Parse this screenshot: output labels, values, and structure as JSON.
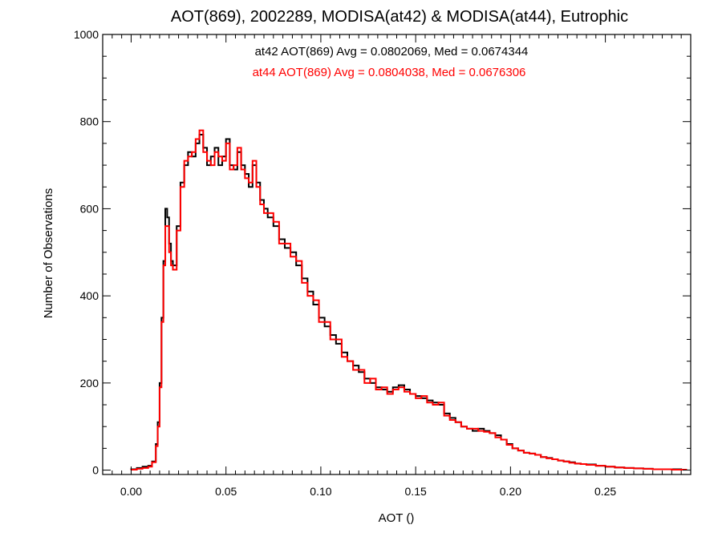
{
  "chart_data": {
    "type": "line",
    "style": "histogram-step",
    "title": "AOT(869), 2002289, MODISA(at42) & MODISA(at44), Eutrophic",
    "xlabel": "AOT ()",
    "ylabel": "Number of Observations",
    "xlim": [
      -0.015,
      0.295
    ],
    "ylim": [
      -10,
      1000
    ],
    "xticks": [
      0.0,
      0.05,
      0.1,
      0.15,
      0.2,
      0.25
    ],
    "xtick_labels": [
      "0.00",
      "0.05",
      "0.10",
      "0.15",
      "0.20",
      "0.25"
    ],
    "yticks": [
      0,
      200,
      400,
      600,
      800,
      1000
    ],
    "ytick_labels": [
      "0",
      "200",
      "400",
      "600",
      "800",
      "1000"
    ],
    "grid": false,
    "annotations": [
      {
        "text": "at42 AOT(869) Avg = 0.0802069, Med = 0.0674344",
        "color": "#000000"
      },
      {
        "text": "at44 AOT(869) Avg = 0.0804038, Med = 0.0676306",
        "color": "#ff0000"
      }
    ],
    "series": [
      {
        "color": "#000000",
        "x": [
          0.0,
          0.003,
          0.006,
          0.009,
          0.011,
          0.013,
          0.014,
          0.015,
          0.016,
          0.017,
          0.018,
          0.019,
          0.02,
          0.021,
          0.022,
          0.024,
          0.026,
          0.028,
          0.03,
          0.032,
          0.034,
          0.036,
          0.038,
          0.04,
          0.042,
          0.044,
          0.046,
          0.048,
          0.05,
          0.052,
          0.054,
          0.056,
          0.058,
          0.06,
          0.062,
          0.064,
          0.066,
          0.068,
          0.07,
          0.072,
          0.075,
          0.078,
          0.081,
          0.084,
          0.087,
          0.09,
          0.093,
          0.096,
          0.099,
          0.102,
          0.105,
          0.108,
          0.111,
          0.114,
          0.117,
          0.12,
          0.123,
          0.126,
          0.129,
          0.132,
          0.135,
          0.138,
          0.141,
          0.144,
          0.147,
          0.15,
          0.153,
          0.156,
          0.159,
          0.162,
          0.165,
          0.168,
          0.171,
          0.174,
          0.177,
          0.18,
          0.183,
          0.186,
          0.189,
          0.192,
          0.195,
          0.198,
          0.201,
          0.204,
          0.207,
          0.21,
          0.213,
          0.216,
          0.219,
          0.222,
          0.225,
          0.228,
          0.231,
          0.234,
          0.237,
          0.24,
          0.245,
          0.25,
          0.255,
          0.26,
          0.265,
          0.27,
          0.275,
          0.28,
          0.285,
          0.29
        ],
        "y": [
          2,
          5,
          8,
          10,
          20,
          60,
          110,
          200,
          350,
          480,
          600,
          580,
          520,
          480,
          470,
          560,
          660,
          700,
          730,
          720,
          750,
          770,
          740,
          700,
          720,
          740,
          700,
          720,
          760,
          700,
          690,
          730,
          700,
          680,
          650,
          700,
          660,
          620,
          600,
          580,
          560,
          530,
          510,
          500,
          470,
          440,
          410,
          380,
          350,
          330,
          310,
          290,
          270,
          250,
          240,
          225,
          210,
          200,
          190,
          185,
          180,
          190,
          195,
          185,
          175,
          170,
          165,
          160,
          155,
          150,
          130,
          120,
          110,
          100,
          95,
          90,
          95,
          90,
          85,
          80,
          70,
          60,
          50,
          45,
          40,
          38,
          35,
          30,
          28,
          25,
          22,
          20,
          18,
          15,
          14,
          13,
          10,
          8,
          6,
          5,
          4,
          3,
          2,
          2,
          2,
          1
        ]
      },
      {
        "color": "#ff0000",
        "x": [
          0.0,
          0.003,
          0.006,
          0.009,
          0.011,
          0.013,
          0.014,
          0.015,
          0.016,
          0.017,
          0.018,
          0.019,
          0.02,
          0.021,
          0.022,
          0.024,
          0.026,
          0.028,
          0.03,
          0.032,
          0.034,
          0.036,
          0.038,
          0.04,
          0.042,
          0.044,
          0.046,
          0.048,
          0.05,
          0.052,
          0.054,
          0.056,
          0.058,
          0.06,
          0.062,
          0.064,
          0.066,
          0.068,
          0.07,
          0.072,
          0.075,
          0.078,
          0.081,
          0.084,
          0.087,
          0.09,
          0.093,
          0.096,
          0.099,
          0.102,
          0.105,
          0.108,
          0.111,
          0.114,
          0.117,
          0.12,
          0.123,
          0.126,
          0.129,
          0.132,
          0.135,
          0.138,
          0.141,
          0.144,
          0.147,
          0.15,
          0.153,
          0.156,
          0.159,
          0.162,
          0.165,
          0.168,
          0.171,
          0.174,
          0.177,
          0.18,
          0.183,
          0.186,
          0.189,
          0.192,
          0.195,
          0.198,
          0.201,
          0.204,
          0.207,
          0.21,
          0.213,
          0.216,
          0.219,
          0.222,
          0.225,
          0.228,
          0.231,
          0.234,
          0.237,
          0.24,
          0.245,
          0.25,
          0.255,
          0.26,
          0.265,
          0.27,
          0.275,
          0.28,
          0.285,
          0.29
        ],
        "y": [
          1,
          3,
          5,
          8,
          18,
          55,
          100,
          190,
          340,
          470,
          560,
          560,
          500,
          470,
          460,
          550,
          650,
          710,
          720,
          730,
          760,
          780,
          730,
          710,
          700,
          730,
          720,
          710,
          750,
          690,
          700,
          740,
          690,
          670,
          660,
          710,
          650,
          610,
          590,
          590,
          570,
          520,
          520,
          490,
          480,
          430,
          400,
          390,
          340,
          340,
          300,
          300,
          260,
          250,
          230,
          230,
          200,
          210,
          185,
          190,
          175,
          185,
          190,
          180,
          175,
          165,
          170,
          155,
          150,
          155,
          125,
          115,
          110,
          100,
          95,
          95,
          90,
          88,
          85,
          75,
          70,
          58,
          50,
          45,
          40,
          38,
          35,
          30,
          27,
          25,
          22,
          20,
          17,
          15,
          14,
          12,
          10,
          8,
          6,
          5,
          4,
          3,
          2,
          2,
          1,
          1
        ]
      }
    ]
  }
}
